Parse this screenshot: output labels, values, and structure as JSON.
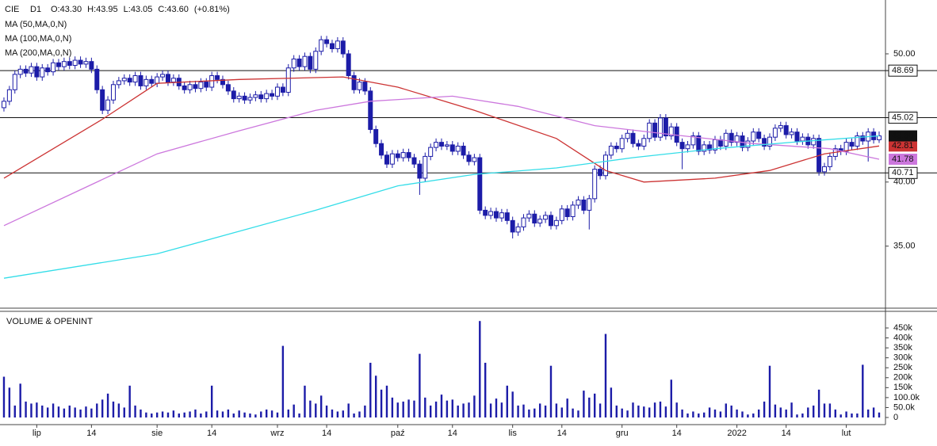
{
  "chart_data": [
    {
      "type": "candlestick",
      "title": "CIE",
      "subtitle": "D1",
      "annotations": [
        "O:43.30",
        "H:43.95",
        "L:43.05",
        "C:43.60",
        "(+0.81%)"
      ],
      "color": "#1c1ca8",
      "xlim": [
        -0.72,
        161.16
      ],
      "ylim": [
        30.1,
        54.2
      ],
      "yticks": [
        {
          "value": 35,
          "label": "35.00"
        },
        {
          "value": 40,
          "label": "40.00"
        },
        {
          "value": 50,
          "label": "50.00"
        }
      ],
      "levels": [
        48.69,
        45.02,
        40.71
      ],
      "last_price": {
        "value": 43.6,
        "label": "43.60"
      },
      "open": [
        45.8,
        46.3,
        47.2,
        48.4,
        48.8,
        48.5,
        49.0,
        48.2,
        48.9,
        48.6,
        49.3,
        49.0,
        49.4,
        49.1,
        49.5,
        49.2,
        49.4,
        48.8,
        47.2,
        45.6,
        46.4,
        47.6,
        47.9,
        48.1,
        47.8,
        48.3,
        47.5,
        48.0,
        47.7,
        48.2,
        48.4,
        47.8,
        48.1,
        47.5,
        47.2,
        47.6,
        47.3,
        47.8,
        47.4,
        48.3,
        48.0,
        47.6,
        47.1,
        46.5,
        46.7,
        46.4,
        46.6,
        46.8,
        46.5,
        46.9,
        46.7,
        47.4,
        47.0,
        48.9,
        49.6,
        49.0,
        49.8,
        48.8,
        50.2,
        51.1,
        50.8,
        50.4,
        51.0,
        50.0,
        48.3,
        47.2,
        47.8,
        47.1,
        44.1,
        43.0,
        42.1,
        41.4,
        42.2,
        41.9,
        42.3,
        41.9,
        41.4,
        40.3,
        42.0,
        42.7,
        43.1,
        42.8,
        42.9,
        42.4,
        42.8,
        42.1,
        41.6,
        41.9,
        37.8,
        37.4,
        37.7,
        37.2,
        37.6,
        37.0,
        36.1,
        36.5,
        37.2,
        37.5,
        36.8,
        37.1,
        37.4,
        36.6,
        37.0,
        37.9,
        37.3,
        38.2,
        38.6,
        37.8,
        38.7,
        41.0,
        40.5,
        42.1,
        42.8,
        42.6,
        43.4,
        43.8,
        43.0,
        42.8,
        43.4,
        44.6,
        43.5,
        45.0,
        43.6,
        44.3,
        43.1,
        42.6,
        42.9,
        43.6,
        42.4,
        42.9,
        42.5,
        43.3,
        42.8,
        43.8,
        43.1,
        43.6,
        42.7,
        43.2,
        43.9,
        43.4,
        42.8,
        43.5,
        44.2,
        44.4,
        43.7,
        43.9,
        43.2,
        43.5,
        42.9,
        43.4,
        40.8,
        41.2,
        42.0,
        42.6,
        42.4,
        43.1,
        42.8,
        43.6,
        43.2,
        43.9,
        43.3
      ],
      "high": [
        46.6,
        47.5,
        48.7,
        49.1,
        49.1,
        49.3,
        49.3,
        49.2,
        49.2,
        49.6,
        49.6,
        49.7,
        49.7,
        49.8,
        49.8,
        49.7,
        49.7,
        49.1,
        47.5,
        46.7,
        47.9,
        48.2,
        48.4,
        48.4,
        48.6,
        48.6,
        48.3,
        48.3,
        48.5,
        48.7,
        48.7,
        48.4,
        48.4,
        47.8,
        47.9,
        47.9,
        48.1,
        48.1,
        48.6,
        48.6,
        48.3,
        47.9,
        47.4,
        47.0,
        47.0,
        46.9,
        47.1,
        47.1,
        47.2,
        47.2,
        47.7,
        47.7,
        49.2,
        49.9,
        49.9,
        50.1,
        50.1,
        50.5,
        51.4,
        51.4,
        51.1,
        51.3,
        51.3,
        50.3,
        48.6,
        48.1,
        48.1,
        47.4,
        44.4,
        43.3,
        42.4,
        42.5,
        42.5,
        42.6,
        42.6,
        42.2,
        41.7,
        42.3,
        43.0,
        43.4,
        43.4,
        43.2,
        43.2,
        43.1,
        43.1,
        42.4,
        42.2,
        42.2,
        38.1,
        38.0,
        38.0,
        37.9,
        37.9,
        37.3,
        36.8,
        37.5,
        37.8,
        37.8,
        37.4,
        37.7,
        37.7,
        37.3,
        38.2,
        38.2,
        38.5,
        38.9,
        38.9,
        39.0,
        41.3,
        41.3,
        42.4,
        43.1,
        43.1,
        43.7,
        44.1,
        44.1,
        43.3,
        43.7,
        44.9,
        44.9,
        45.3,
        45.3,
        44.6,
        44.6,
        43.4,
        43.2,
        43.9,
        43.9,
        43.2,
        43.2,
        43.6,
        43.6,
        44.1,
        44.1,
        43.9,
        43.9,
        43.5,
        44.2,
        44.2,
        43.7,
        43.8,
        44.5,
        44.7,
        44.7,
        44.2,
        44.2,
        43.8,
        43.8,
        43.7,
        43.7,
        41.5,
        42.3,
        42.9,
        42.9,
        43.4,
        43.4,
        43.9,
        43.9,
        44.2,
        44.2,
        43.95
      ],
      "low": [
        45.5,
        46.0,
        46.9,
        48.1,
        48.2,
        48.2,
        47.9,
        47.9,
        48.3,
        48.3,
        48.7,
        48.7,
        48.8,
        48.8,
        48.9,
        48.9,
        48.5,
        46.9,
        45.3,
        45.3,
        46.1,
        47.3,
        47.6,
        47.5,
        47.5,
        47.2,
        47.2,
        47.4,
        47.4,
        47.9,
        47.5,
        47.5,
        47.2,
        46.9,
        46.9,
        47.0,
        47.0,
        47.1,
        47.1,
        47.7,
        47.3,
        46.8,
        46.2,
        46.2,
        46.1,
        46.1,
        46.3,
        46.2,
        46.2,
        46.4,
        46.4,
        46.7,
        46.7,
        48.6,
        48.7,
        48.7,
        48.5,
        48.5,
        49.9,
        50.5,
        50.1,
        50.1,
        49.7,
        48.0,
        46.9,
        46.9,
        46.8,
        43.8,
        42.7,
        41.8,
        41.1,
        41.1,
        41.6,
        41.6,
        41.6,
        41.1,
        39.0,
        40.0,
        41.7,
        42.4,
        42.5,
        42.5,
        42.1,
        42.1,
        41.8,
        41.3,
        41.3,
        37.5,
        37.1,
        37.1,
        36.9,
        36.9,
        36.7,
        35.6,
        35.8,
        36.2,
        36.9,
        36.5,
        36.5,
        36.8,
        36.3,
        36.3,
        36.7,
        37.0,
        37.0,
        37.9,
        37.5,
        36.3,
        38.4,
        40.2,
        40.2,
        41.8,
        42.3,
        42.3,
        43.1,
        42.7,
        42.5,
        42.5,
        43.1,
        43.2,
        43.2,
        43.3,
        43.3,
        42.8,
        41.0,
        42.3,
        42.6,
        42.1,
        42.1,
        42.2,
        42.2,
        42.5,
        42.5,
        42.8,
        42.8,
        42.4,
        42.4,
        42.9,
        43.1,
        42.5,
        42.5,
        43.2,
        43.9,
        43.4,
        43.4,
        42.9,
        42.9,
        42.6,
        42.6,
        40.5,
        40.5,
        40.9,
        41.7,
        42.1,
        42.1,
        42.5,
        42.5,
        42.9,
        41.6,
        43.0,
        43.05
      ],
      "close": [
        46.3,
        47.2,
        48.4,
        48.8,
        48.5,
        49.0,
        48.2,
        48.9,
        48.6,
        49.3,
        49.0,
        49.4,
        49.1,
        49.5,
        49.2,
        49.4,
        48.8,
        47.2,
        45.6,
        46.4,
        47.6,
        47.9,
        48.1,
        47.8,
        48.3,
        47.5,
        48.0,
        47.7,
        48.2,
        48.4,
        47.8,
        48.1,
        47.5,
        47.2,
        47.6,
        47.3,
        47.8,
        47.4,
        48.3,
        48.0,
        47.6,
        47.1,
        46.5,
        46.7,
        46.4,
        46.6,
        46.8,
        46.5,
        46.9,
        46.7,
        47.4,
        47.0,
        48.9,
        49.6,
        49.0,
        49.8,
        48.8,
        50.2,
        51.1,
        50.8,
        50.4,
        51.0,
        50.0,
        48.3,
        47.2,
        47.8,
        47.1,
        44.1,
        43.0,
        42.1,
        41.4,
        42.2,
        41.9,
        42.3,
        41.9,
        41.4,
        40.3,
        42.0,
        42.7,
        43.1,
        42.8,
        42.9,
        42.4,
        42.8,
        42.1,
        41.6,
        41.9,
        37.8,
        37.4,
        37.7,
        37.2,
        37.6,
        37.0,
        36.1,
        36.5,
        37.2,
        37.5,
        36.8,
        37.1,
        37.4,
        36.6,
        37.0,
        37.9,
        37.3,
        38.2,
        38.6,
        37.8,
        38.7,
        41.0,
        40.5,
        42.1,
        42.8,
        42.6,
        43.4,
        43.8,
        43.0,
        42.8,
        43.4,
        44.6,
        43.5,
        45.0,
        43.6,
        44.3,
        43.1,
        42.6,
        42.9,
        43.6,
        42.4,
        42.9,
        42.5,
        43.3,
        42.8,
        43.8,
        43.1,
        43.6,
        42.7,
        43.2,
        43.9,
        43.4,
        42.8,
        43.5,
        44.2,
        44.4,
        43.7,
        43.9,
        43.2,
        43.5,
        42.9,
        43.4,
        40.8,
        41.2,
        42.0,
        42.6,
        42.4,
        43.1,
        42.8,
        43.6,
        43.2,
        43.9,
        43.3,
        43.6
      ],
      "series": [
        {
          "name": "MA (50,MA,0,N)",
          "color": "#cc3333",
          "x": [
            0,
            18,
            28,
            43,
            62,
            72,
            86,
            101,
            110,
            117,
            130,
            140,
            150,
            160
          ],
          "values": [
            40.3,
            44.9,
            47.7,
            48.0,
            48.2,
            47.4,
            45.6,
            43.4,
            40.9,
            40.0,
            40.3,
            40.9,
            42.2,
            42.81
          ],
          "end_label": 42.81
        },
        {
          "name": "MA (100,MA,0,N)",
          "color": "#cc77dd",
          "x": [
            0,
            14,
            28,
            43,
            57,
            67,
            82,
            94,
            108,
            122,
            137,
            151,
            160
          ],
          "values": [
            36.6,
            39.4,
            42.2,
            44.0,
            45.6,
            46.3,
            46.7,
            45.9,
            44.4,
            43.7,
            43.0,
            42.6,
            41.78
          ],
          "end_label": 41.78
        },
        {
          "name": "MA (200,MA,0,N)",
          "color": "#33dde8",
          "x": [
            0,
            28,
            57,
            72,
            86,
            101,
            115,
            130,
            144,
            160
          ],
          "values": [
            32.5,
            34.4,
            37.8,
            39.7,
            40.6,
            41.1,
            41.9,
            42.6,
            43.1,
            43.6
          ]
        }
      ]
    },
    {
      "type": "bar",
      "title": "VOLUME & OPENINT",
      "color": "#1c1ca8",
      "xlim": [
        -0.72,
        161.16
      ],
      "ylim": [
        -31860,
        517700
      ],
      "yticks": [
        0,
        {
          "value": 50000,
          "label": "50.0k"
        },
        {
          "value": 100000,
          "label": "100.0k"
        },
        {
          "value": 150000,
          "label": "150k"
        },
        {
          "value": 200000,
          "label": "200k"
        },
        {
          "value": 250000,
          "label": "250k"
        },
        {
          "value": 300000,
          "label": "300k"
        },
        {
          "value": 350000,
          "label": "350k"
        },
        {
          "value": 400000,
          "label": "400k"
        },
        {
          "value": 450000,
          "label": "450k"
        }
      ],
      "xticks": [
        {
          "value": 6,
          "label": "lip"
        },
        {
          "value": 16,
          "label": "14"
        },
        {
          "value": 28,
          "label": "sie"
        },
        {
          "value": 38,
          "label": "14"
        },
        {
          "value": 50,
          "label": "wrz"
        },
        {
          "value": 59,
          "label": "14"
        },
        {
          "value": 72,
          "label": "paź"
        },
        {
          "value": 82,
          "label": "14"
        },
        {
          "value": 93,
          "label": "lis"
        },
        {
          "value": 102,
          "label": "14"
        },
        {
          "value": 113,
          "label": "gru"
        },
        {
          "value": 123,
          "label": "14"
        },
        {
          "value": 134,
          "label": "2022"
        },
        {
          "value": 143,
          "label": "14"
        },
        {
          "value": 154,
          "label": "lut"
        }
      ],
      "values": [
        205000,
        150000,
        60000,
        170000,
        80000,
        70000,
        75000,
        60000,
        50000,
        70000,
        55000,
        45000,
        60000,
        50000,
        40000,
        55000,
        45000,
        70000,
        90000,
        120000,
        80000,
        70000,
        50000,
        160000,
        60000,
        40000,
        25000,
        20000,
        25000,
        30000,
        25000,
        35000,
        20000,
        25000,
        30000,
        40000,
        20000,
        30000,
        160000,
        35000,
        30000,
        40000,
        20000,
        35000,
        25000,
        20000,
        15000,
        30000,
        40000,
        35000,
        25000,
        360000,
        40000,
        65000,
        20000,
        160000,
        85000,
        70000,
        110000,
        60000,
        40000,
        30000,
        35000,
        70000,
        20000,
        30000,
        60000,
        275000,
        210000,
        140000,
        160000,
        100000,
        75000,
        80000,
        90000,
        85000,
        320000,
        100000,
        60000,
        80000,
        115000,
        85000,
        90000,
        60000,
        70000,
        75000,
        110000,
        485000,
        275000,
        70000,
        95000,
        75000,
        160000,
        130000,
        60000,
        65000,
        40000,
        45000,
        70000,
        60000,
        260000,
        70000,
        50000,
        95000,
        45000,
        35000,
        135000,
        100000,
        120000,
        70000,
        420000,
        150000,
        60000,
        45000,
        35000,
        75000,
        60000,
        55000,
        50000,
        75000,
        80000,
        55000,
        190000,
        75000,
        40000,
        20000,
        30000,
        20000,
        25000,
        50000,
        40000,
        30000,
        70000,
        60000,
        40000,
        30000,
        15000,
        20000,
        40000,
        80000,
        260000,
        65000,
        50000,
        40000,
        75000,
        15000,
        20000,
        50000,
        60000,
        140000,
        70000,
        70000,
        40000,
        15000,
        30000,
        20000,
        20000,
        265000,
        40000,
        50000,
        25000
      ]
    }
  ]
}
